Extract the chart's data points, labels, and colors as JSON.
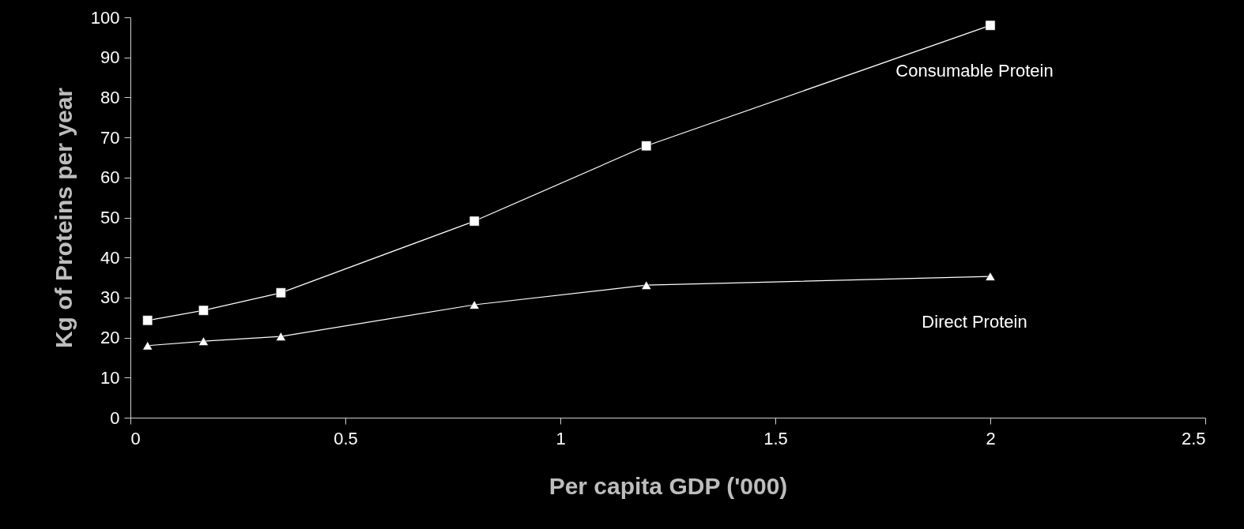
{
  "chart_data": {
    "type": "line",
    "xlabel": "Per capita GDP ('000)",
    "ylabel": "Kg of Proteins per year",
    "x": [
      0.04,
      0.17,
      0.35,
      0.8,
      1.2,
      2.0
    ],
    "series": [
      {
        "name": "Consumable Protein",
        "color": "#ffffff",
        "marker": "square",
        "values": [
          24.3,
          26.8,
          31.2,
          49.1,
          67.9,
          98
        ]
      },
      {
        "name": "Direct Protein",
        "color": "#ffffff",
        "marker": "triangle",
        "values": [
          18,
          19.1,
          20.3,
          28.2,
          33.1,
          35.3
        ]
      }
    ],
    "xlim": [
      0,
      2.5
    ],
    "xticks": [
      0,
      0.5,
      1,
      1.5,
      2,
      2.5
    ],
    "ylim": [
      0,
      100
    ],
    "yticks": [
      0,
      10,
      20,
      30,
      40,
      50,
      60,
      70,
      80,
      90,
      100
    ],
    "grid": false,
    "legend": false
  }
}
